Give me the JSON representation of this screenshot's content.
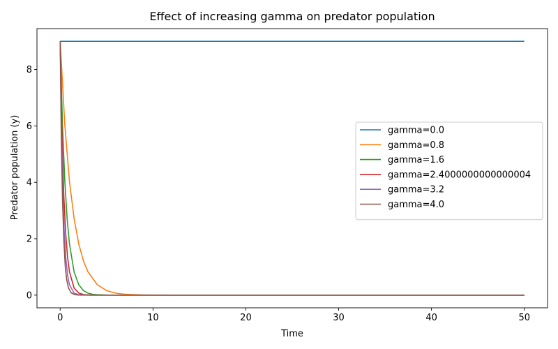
{
  "chart_data": {
    "type": "line",
    "title": "Effect of increasing gamma on predator population",
    "xlabel": "Time",
    "ylabel": "Predator population (y)",
    "xlim": [
      -2.5,
      52.5
    ],
    "ylim": [
      -0.45,
      9.45
    ],
    "xticks": [
      0,
      10,
      20,
      30,
      40,
      50
    ],
    "yticks": [
      0,
      2,
      4,
      6,
      8
    ],
    "legend_position": "center-right",
    "series": [
      {
        "name": "gamma=0.0",
        "color": "#1f77b4",
        "x": [
          0,
          50
        ],
        "y": [
          9,
          9
        ]
      },
      {
        "name": "gamma=0.8",
        "color": "#ff7f0e",
        "x": [
          0,
          0.5,
          1,
          1.5,
          2,
          2.5,
          3,
          4,
          5,
          6,
          7,
          8,
          9,
          10,
          12,
          15,
          20,
          30,
          40,
          50
        ],
        "y": [
          9.0,
          6.03,
          4.04,
          2.71,
          1.82,
          1.22,
          0.82,
          0.37,
          0.16,
          0.07,
          0.03,
          0.015,
          0.007,
          0.003,
          0.0,
          0.0,
          0.0,
          0.0,
          0.0,
          0.0
        ]
      },
      {
        "name": "gamma=1.6",
        "color": "#2ca02c",
        "x": [
          0,
          0.25,
          0.5,
          0.75,
          1,
          1.5,
          2,
          2.5,
          3,
          3.5,
          4,
          5,
          6,
          8,
          10,
          20,
          30,
          40,
          50
        ],
        "y": [
          9.0,
          6.03,
          4.04,
          2.71,
          1.82,
          0.82,
          0.37,
          0.16,
          0.07,
          0.03,
          0.015,
          0.003,
          0.0,
          0.0,
          0.0,
          0.0,
          0.0,
          0.0,
          0.0
        ]
      },
      {
        "name": "gamma=2.4000000000000004",
        "color": "#d62728",
        "x": [
          0,
          0.2,
          0.4,
          0.6,
          0.8,
          1,
          1.5,
          2,
          2.5,
          3,
          4,
          5,
          10,
          20,
          30,
          40,
          50
        ],
        "y": [
          9.0,
          5.59,
          3.47,
          2.16,
          1.34,
          0.83,
          0.25,
          0.074,
          0.022,
          0.007,
          0.0,
          0.0,
          0.0,
          0.0,
          0.0,
          0.0,
          0.0
        ]
      },
      {
        "name": "gamma=3.2",
        "color": "#9467bd",
        "x": [
          0,
          0.15,
          0.3,
          0.45,
          0.6,
          0.8,
          1,
          1.5,
          2,
          3,
          4,
          5,
          10,
          20,
          30,
          40,
          50
        ],
        "y": [
          9.0,
          5.59,
          3.47,
          2.16,
          1.34,
          0.7,
          0.37,
          0.074,
          0.015,
          0.0,
          0.0,
          0.0,
          0.0,
          0.0,
          0.0,
          0.0,
          0.0
        ]
      },
      {
        "name": "gamma=4.0",
        "color": "#8c564b",
        "x": [
          0,
          0.12,
          0.25,
          0.4,
          0.55,
          0.7,
          0.9,
          1.2,
          1.6,
          2,
          3,
          4,
          5,
          10,
          20,
          30,
          40,
          50
        ],
        "y": [
          9.0,
          5.6,
          3.4,
          1.91,
          1.0,
          0.55,
          0.25,
          0.075,
          0.015,
          0.003,
          0.0,
          0.0,
          0.0,
          0.0,
          0.0,
          0.0,
          0.0,
          0.0
        ]
      }
    ]
  }
}
